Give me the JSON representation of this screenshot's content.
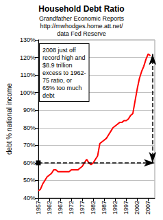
{
  "chart_data": {
    "type": "line",
    "title": "Household Debt Ratio",
    "subtitle": [
      "Grandfather Economic Reports",
      "http://mwhodges.home.att.net/",
      "data Fed Reserve"
    ],
    "y_label": "debt % national income",
    "annotation": [
      "2008 just off",
      "record high and",
      "$8.9 trillion",
      "excess to 1962-",
      "75 ratio, or",
      "65% too much",
      "debt"
    ],
    "x": [
      1957,
      1958,
      1959,
      1960,
      1961,
      1962,
      1963,
      1964,
      1965,
      1966,
      1967,
      1968,
      1969,
      1970,
      1971,
      1972,
      1973,
      1974,
      1975,
      1976,
      1977,
      1978,
      1979,
      1980,
      1981,
      1982,
      1983,
      1984,
      1985,
      1986,
      1987,
      1988,
      1989,
      1990,
      1991,
      1992,
      1993,
      1994,
      1995,
      1996,
      1997,
      1998,
      1999,
      2000,
      2001,
      2002,
      2003,
      2004,
      2005,
      2006,
      2007,
      2008
    ],
    "values": [
      44,
      45,
      48,
      50,
      52,
      53,
      54,
      56,
      56,
      55,
      55,
      55,
      55,
      55,
      55,
      56,
      56,
      56,
      56,
      57,
      58,
      60,
      62,
      60,
      59,
      60,
      62,
      64,
      71,
      72,
      73,
      74,
      76,
      78,
      80,
      81,
      82,
      83,
      83,
      84,
      84,
      85,
      87,
      88,
      95,
      102,
      108,
      112,
      115,
      119,
      122,
      121
    ],
    "color": "#ff0000",
    "reference_line": 60,
    "arrow": {
      "x": 2009,
      "from": 60,
      "to": 122
    },
    "xlim": [
      1957,
      2010
    ],
    "xticks": [
      1957,
      1962,
      1967,
      1972,
      1977,
      1982,
      1987,
      1992,
      1997,
      2002,
      2007
    ],
    "ylim": [
      40,
      130
    ],
    "yticks": [
      {
        "value": 40,
        "label": "40%"
      },
      {
        "value": 50,
        "label": "50%"
      },
      {
        "value": 60,
        "label": "60%"
      },
      {
        "value": 70,
        "label": "70%"
      },
      {
        "value": 80,
        "label": "80%"
      },
      {
        "value": 90,
        "label": "90%"
      },
      {
        "value": 100,
        "label": "100%"
      },
      {
        "value": 110,
        "label": "110%"
      },
      {
        "value": 120,
        "label": "120%"
      },
      {
        "value": 130,
        "label": "130%"
      }
    ],
    "grid": true
  }
}
